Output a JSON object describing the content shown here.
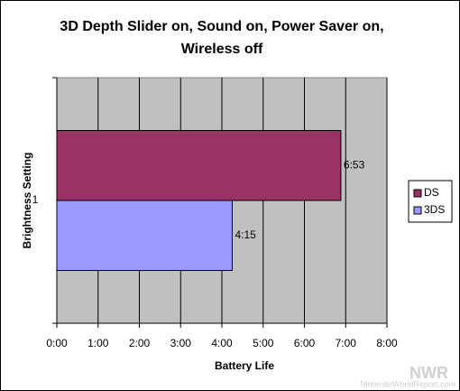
{
  "chart_data": {
    "type": "hbar",
    "title": "3D Depth Slider on, Sound on, Power Saver on, Wireless off",
    "x_label": "Battery Life",
    "y_label": "Brightness Setting",
    "categories": [
      "1"
    ],
    "series": [
      {
        "name": "DS",
        "color": "#993366",
        "values": [
          413
        ],
        "value_labels": [
          "6:53"
        ]
      },
      {
        "name": "3DS",
        "color": "#9999ff",
        "values": [
          255
        ],
        "value_labels": [
          "4:15"
        ]
      }
    ],
    "xlim": [
      0,
      480
    ],
    "xticks": [
      {
        "value": 0,
        "label": "0:00"
      },
      {
        "value": 60,
        "label": "1:00"
      },
      {
        "value": 120,
        "label": "2:00"
      },
      {
        "value": 180,
        "label": "3:00"
      },
      {
        "value": 240,
        "label": "4:00"
      },
      {
        "value": 300,
        "label": "5:00"
      },
      {
        "value": 360,
        "label": "6:00"
      },
      {
        "value": 420,
        "label": "7:00"
      },
      {
        "value": 480,
        "label": "8:00"
      }
    ],
    "grid": true,
    "legend": "right"
  },
  "watermark": {
    "logo": "NWR",
    "site": "NintendoWorldReport.com"
  }
}
